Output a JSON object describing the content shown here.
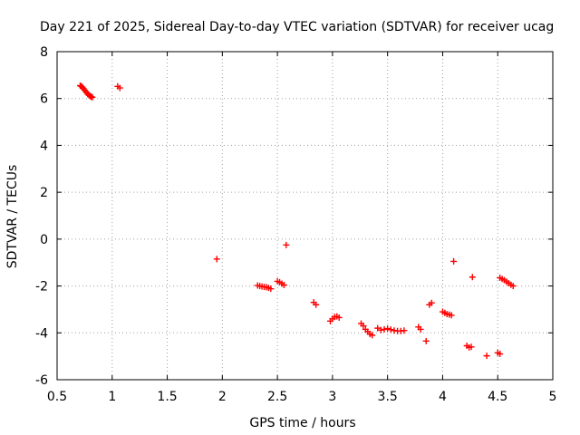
{
  "chart_data": {
    "type": "scatter",
    "title": "Day 221 of 2025, Sidereal Day-to-day VTEC variation (SDTVAR) for receiver ucag",
    "xlabel": "GPS time / hours",
    "ylabel": "SDTVAR / TECUs",
    "xlim": [
      0.5,
      5
    ],
    "ylim": [
      -6,
      8
    ],
    "x_ticks": [
      0.5,
      1,
      1.5,
      2,
      2.5,
      3,
      3.5,
      4,
      4.5,
      5
    ],
    "x_tick_labels": [
      "0.5",
      "1",
      "1.5",
      "2",
      "2.5",
      "3",
      "3.5",
      "4",
      "4.5",
      "5"
    ],
    "y_ticks": [
      -6,
      -4,
      -2,
      0,
      2,
      4,
      6,
      8
    ],
    "y_tick_labels": [
      "-6",
      "-4",
      "-2",
      "0",
      "2",
      "4",
      "6",
      "8"
    ],
    "grid": true,
    "marker": "+",
    "marker_color": "#ff0000",
    "series": [
      {
        "name": "SDTVAR",
        "x": [
          0.71,
          0.72,
          0.73,
          0.74,
          0.75,
          0.76,
          0.77,
          0.78,
          0.79,
          0.8,
          0.81,
          0.82,
          1.05,
          1.07,
          1.95,
          2.32,
          2.34,
          2.36,
          2.38,
          2.4,
          2.42,
          2.44,
          2.5,
          2.52,
          2.54,
          2.56,
          2.58,
          2.83,
          2.85,
          2.98,
          3.0,
          3.02,
          3.04,
          3.06,
          3.26,
          3.28,
          3.3,
          3.32,
          3.34,
          3.36,
          3.41,
          3.44,
          3.47,
          3.5,
          3.53,
          3.56,
          3.59,
          3.62,
          3.65,
          3.78,
          3.8,
          3.85,
          3.88,
          3.9,
          4.0,
          4.02,
          4.04,
          4.06,
          4.08,
          4.1,
          4.22,
          4.24,
          4.26,
          4.27,
          4.4,
          4.5,
          4.52,
          4.52,
          4.54,
          4.56,
          4.58,
          4.6,
          4.62,
          4.64
        ],
        "y": [
          6.55,
          6.52,
          6.48,
          6.42,
          6.36,
          6.3,
          6.24,
          6.18,
          6.14,
          6.1,
          6.08,
          6.05,
          6.52,
          6.45,
          -0.85,
          -1.98,
          -2.0,
          -2.02,
          -2.04,
          -2.05,
          -2.08,
          -2.12,
          -1.8,
          -1.84,
          -1.9,
          -1.96,
          -0.25,
          -2.7,
          -2.8,
          -3.5,
          -3.4,
          -3.32,
          -3.3,
          -3.35,
          -3.6,
          -3.7,
          -3.85,
          -3.95,
          -4.05,
          -4.1,
          -3.8,
          -3.88,
          -3.85,
          -3.82,
          -3.86,
          -3.9,
          -3.92,
          -3.92,
          -3.9,
          -3.75,
          -3.85,
          -4.35,
          -2.8,
          -2.72,
          -3.1,
          -3.15,
          -3.2,
          -3.22,
          -3.25,
          -0.95,
          -4.55,
          -4.62,
          -4.6,
          -1.62,
          -4.98,
          -4.85,
          -4.9,
          -1.65,
          -1.7,
          -1.75,
          -1.82,
          -1.88,
          -1.95,
          -2.0
        ]
      }
    ]
  }
}
